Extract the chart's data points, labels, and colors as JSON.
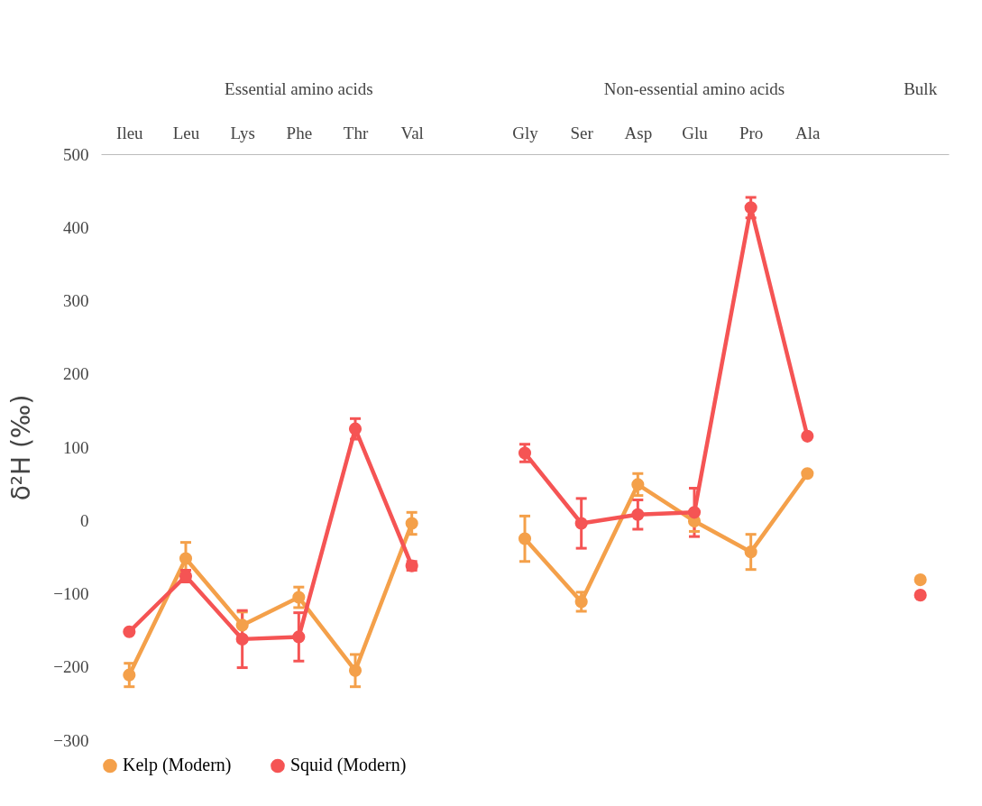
{
  "chart_data": {
    "type": "line",
    "ylabel": "δ²H (‰)",
    "categories": [
      "Ileu",
      "Leu",
      "Lys",
      "Phe",
      "Thr",
      "Val",
      null,
      "Gly",
      "Ser",
      "Asp",
      "Glu",
      "Pro",
      "Ala",
      null,
      null
    ],
    "annotations": [
      "Essential amino acids",
      "Non-essential amino acids",
      "Bulk"
    ],
    "series": [
      {
        "name": "Kelp (Modern)",
        "color": "#f4a04a",
        "values": [
          -211,
          -52,
          -143,
          -105,
          -205,
          -4,
          null,
          -25,
          -111,
          49,
          -1,
          -43,
          64,
          null,
          -81
        ],
        "errors": [
          16,
          22,
          18,
          14,
          22,
          15,
          null,
          31,
          13,
          15,
          14,
          24,
          null,
          null,
          null
        ]
      },
      {
        "name": "Squid (Modern)",
        "color": "#f55454",
        "values": [
          -152,
          -76,
          -162,
          -159,
          125,
          -62,
          null,
          92,
          -4,
          8,
          11,
          427,
          115,
          null,
          -102
        ],
        "errors": [
          null,
          8,
          39,
          33,
          14,
          6,
          null,
          12,
          34,
          20,
          33,
          14,
          null,
          null,
          null
        ]
      }
    ],
    "ylim": [
      -300,
      500
    ],
    "yticks": [
      -300,
      -200,
      -100,
      0,
      100,
      200,
      300,
      400,
      500
    ],
    "grid": false,
    "legend": "bottom",
    "marker": "circle",
    "line_style": "solid"
  }
}
